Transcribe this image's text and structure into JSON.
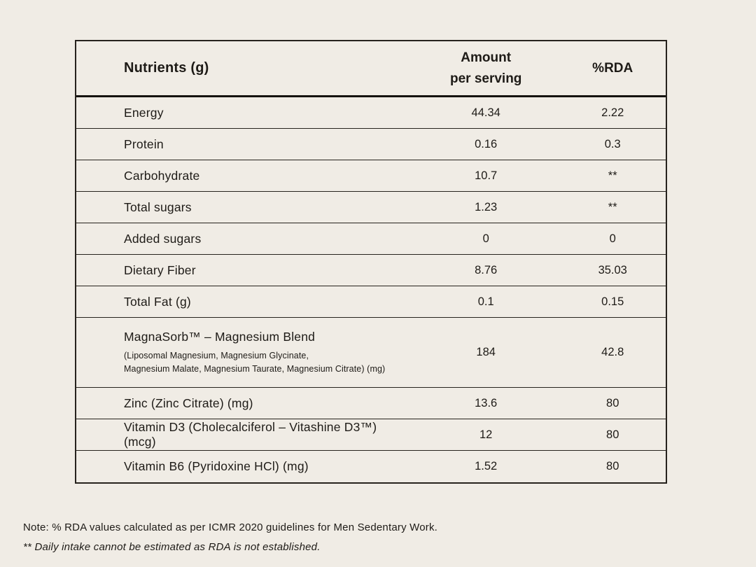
{
  "colors": {
    "background": "#f0ece5",
    "text": "#1e1b17",
    "border": "#26221d"
  },
  "table": {
    "headers": {
      "nutrients": "Nutrients (g)",
      "amount": "Amount\nper serving",
      "rda": "%RDA"
    },
    "rows": [
      {
        "name": "Energy",
        "amount": "44.34",
        "rda": "2.22"
      },
      {
        "name": "Protein",
        "amount": "0.16",
        "rda": "0.3"
      },
      {
        "name": "Carbohydrate",
        "amount": "10.7",
        "rda": "**"
      },
      {
        "name": "Total sugars",
        "amount": "1.23",
        "rda": "**"
      },
      {
        "name": "Added sugars",
        "amount": "0",
        "rda": "0"
      },
      {
        "name": "Dietary Fiber",
        "amount": "8.76",
        "rda": "35.03"
      },
      {
        "name": "Total Fat (g)",
        "amount": "0.1",
        "rda": "0.15"
      },
      {
        "name": "MagnaSorb™ – Magnesium Blend",
        "sublabel": "(Liposomal Magnesium, Magnesium Glycinate,\nMagnesium Malate, Magnesium Taurate, Magnesium Citrate) (mg)",
        "amount": "184",
        "rda": "42.8"
      },
      {
        "name": "Zinc (Zinc Citrate) (mg)",
        "amount": "13.6",
        "rda": "80"
      },
      {
        "name": "Vitamin D3 (Cholecalciferol – Vitashine D3™) (mcg)",
        "amount": "12",
        "rda": "80"
      },
      {
        "name": "Vitamin B6 (Pyridoxine HCl) (mg)",
        "amount": "1.52",
        "rda": "80"
      }
    ]
  },
  "notes": {
    "note1": "Note: % RDA values calculated as per ICMR 2020 guidelines for Men Sedentary Work.",
    "note2": "** Daily intake cannot be estimated as RDA is not established."
  }
}
